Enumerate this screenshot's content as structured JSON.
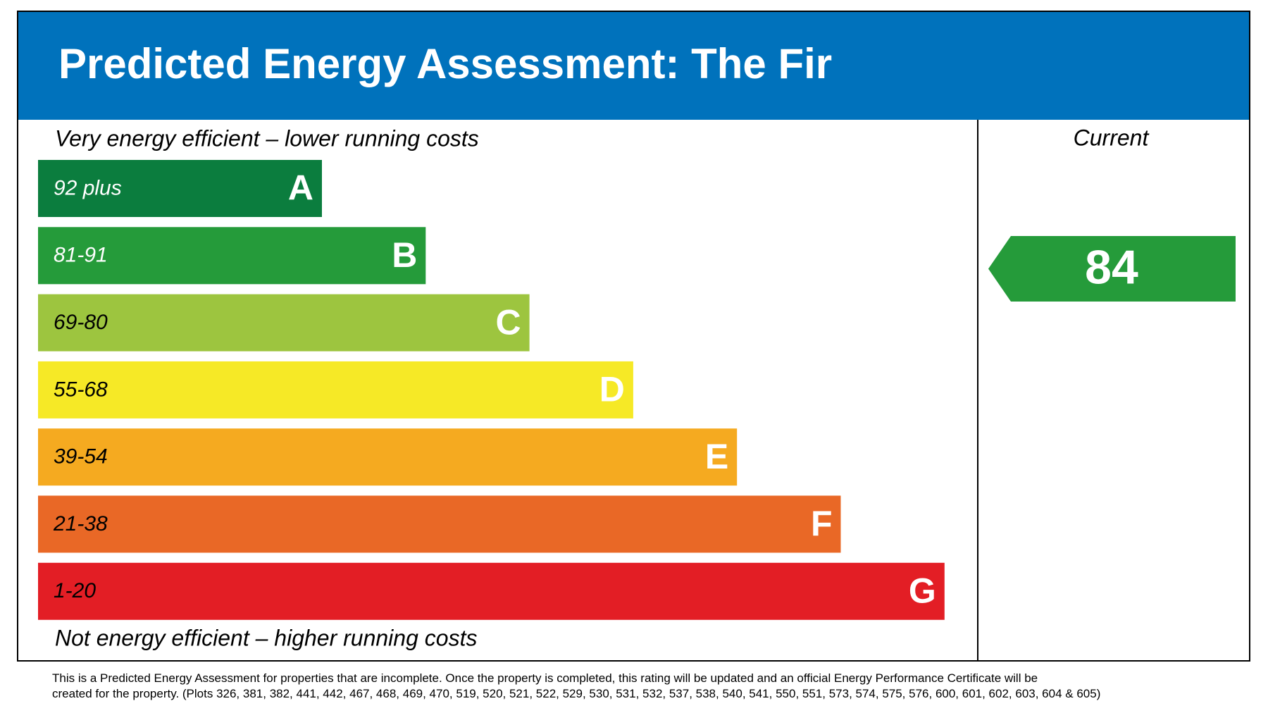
{
  "header": {
    "title": "Predicted Energy Assessment: The Fir",
    "color": "#0072bc"
  },
  "scale": {
    "top_note": "Very energy efficient – lower running costs",
    "bottom_note": "Not energy efficient – higher running costs",
    "bands": [
      {
        "range": "92 plus",
        "letter": "A",
        "color": "#0b7d3e",
        "label_color": "#ffffff"
      },
      {
        "range": "81-91",
        "letter": "B",
        "color": "#259b3a",
        "label_color": "#ffffff"
      },
      {
        "range": "69-80",
        "letter": "C",
        "color": "#9dc53f",
        "label_color": "#000000"
      },
      {
        "range": "55-68",
        "letter": "D",
        "color": "#f6e926",
        "label_color": "#000000"
      },
      {
        "range": "39-54",
        "letter": "E",
        "color": "#f5aa20",
        "label_color": "#000000"
      },
      {
        "range": "21-38",
        "letter": "F",
        "color": "#e96826",
        "label_color": "#000000"
      },
      {
        "range": "1-20",
        "letter": "G",
        "color": "#e31e25",
        "label_color": "#000000"
      }
    ]
  },
  "current": {
    "label": "Current",
    "value": 84,
    "color": "#259b3a"
  },
  "footnote": [
    "This is a Predicted Energy Assessment for properties that are incomplete. Once the property is completed, this rating will be updated and an official Energy Performance Certificate will be",
    "created for the property. (Plots 326, 381, 382, 441, 442, 467, 468, 469, 470, 519, 520, 521, 522, 529, 530, 531, 532, 537, 538, 540, 541, 550, 551, 573, 574, 575, 576, 600, 601, 602, 603, 604 & 605)"
  ]
}
